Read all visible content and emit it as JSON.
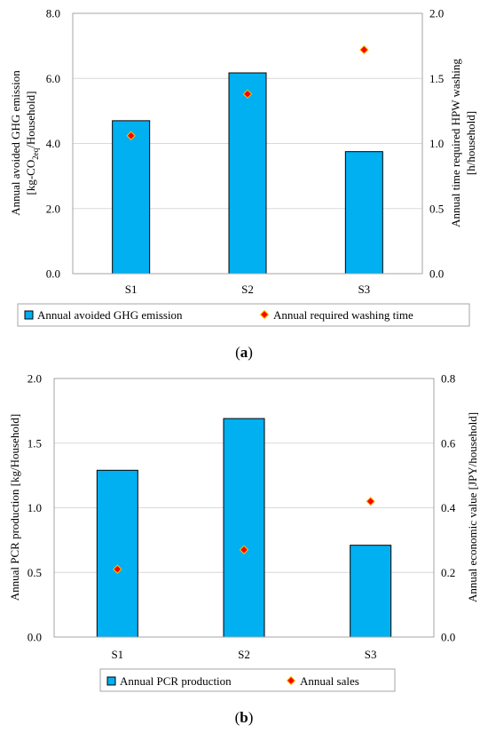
{
  "chart_data": [
    {
      "type": "bar",
      "panel_label": "a",
      "categories": [
        "S1",
        "S2",
        "S3"
      ],
      "series": [
        {
          "name": "Annual avoided GHG emission",
          "axis": "left",
          "type": "bar",
          "values": [
            4.7,
            6.17,
            3.75
          ]
        },
        {
          "name": "Annual required washing time",
          "axis": "right",
          "type": "scatter",
          "values": [
            1.06,
            1.38,
            1.72
          ]
        }
      ],
      "y_left": {
        "label_line1": "Annual avoided GHG emission",
        "label_line2_main": "[kg-CO",
        "label_line2_sub": "2eq",
        "label_line2_tail": "/Household]",
        "ylim": [
          0,
          8
        ],
        "ticks": [
          "0.0",
          "2.0",
          "4.0",
          "6.0",
          "8.0"
        ]
      },
      "y_right": {
        "label_line1": "Annual time required HPW washing",
        "label_line2": "[h/household]",
        "ylim": [
          0,
          2
        ],
        "ticks": [
          "0.0",
          "0.5",
          "1.0",
          "1.5",
          "2.0"
        ]
      },
      "grid": true,
      "legend": "bottom",
      "colors": {
        "bar": "#00b0f0",
        "marker": "#ff0000",
        "marker_edge": "#ffc000"
      }
    },
    {
      "type": "bar",
      "panel_label": "b",
      "categories": [
        "S1",
        "S2",
        "S3"
      ],
      "series": [
        {
          "name": "Annual PCR production",
          "axis": "left",
          "type": "bar",
          "values": [
            1.29,
            1.69,
            0.71
          ]
        },
        {
          "name": "Annual sales",
          "axis": "right",
          "type": "scatter",
          "values": [
            0.21,
            0.27,
            0.42
          ]
        }
      ],
      "y_left": {
        "label_line1": "Annual PCR production [kg/Household]",
        "ylim": [
          0,
          2
        ],
        "ticks": [
          "0.0",
          "0.5",
          "1.0",
          "1.5",
          "2.0"
        ]
      },
      "y_right": {
        "label_line1": "Annual economic value [JPY/household]",
        "ylim": [
          0,
          0.8
        ],
        "ticks": [
          "0.0",
          "0.2",
          "0.4",
          "0.6",
          "0.8"
        ]
      },
      "grid": true,
      "legend": "bottom",
      "colors": {
        "bar": "#00b0f0",
        "marker": "#ff0000",
        "marker_edge": "#ffc000"
      }
    }
  ],
  "captions": [
    {
      "open": "(",
      "letter": "a",
      "close": ")"
    },
    {
      "open": "(",
      "letter": "b",
      "close": ")"
    }
  ]
}
